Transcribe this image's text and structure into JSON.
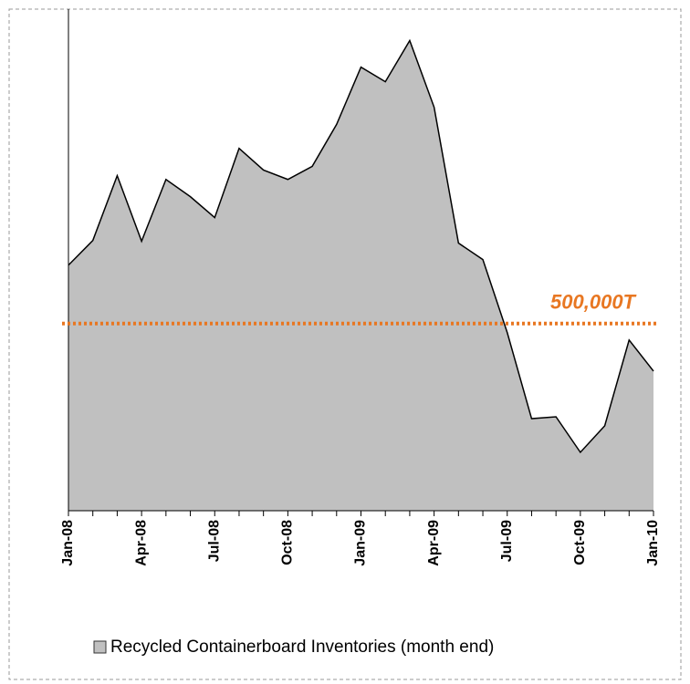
{
  "chart_data": {
    "type": "area",
    "categories": [
      "Jan-08",
      null,
      null,
      "Apr-08",
      null,
      null,
      "Jul-08",
      null,
      null,
      "Oct-08",
      null,
      null,
      "Jan-09",
      null,
      null,
      "Apr-09",
      null,
      null,
      "Jul-09",
      null,
      null,
      "Oct-09",
      null,
      null,
      "Jan-10"
    ],
    "series": [
      {
        "name": "Recycled Containerboard Inventories (month end)",
        "color": "#c0c0c0",
        "values": [
          656000,
          722000,
          895000,
          720000,
          885000,
          839000,
          783000,
          968000,
          910000,
          885000,
          920000,
          1032000,
          1185000,
          1146000,
          1256000,
          1078000,
          715000,
          671000,
          476000,
          246000,
          251000,
          156000,
          227000,
          456000,
          373000
        ]
      }
    ],
    "ylim": [
      0,
      1340000
    ],
    "reference_line": {
      "value": 500000,
      "label": "500,000T",
      "color": "#e87722"
    },
    "legend": "bottom"
  }
}
